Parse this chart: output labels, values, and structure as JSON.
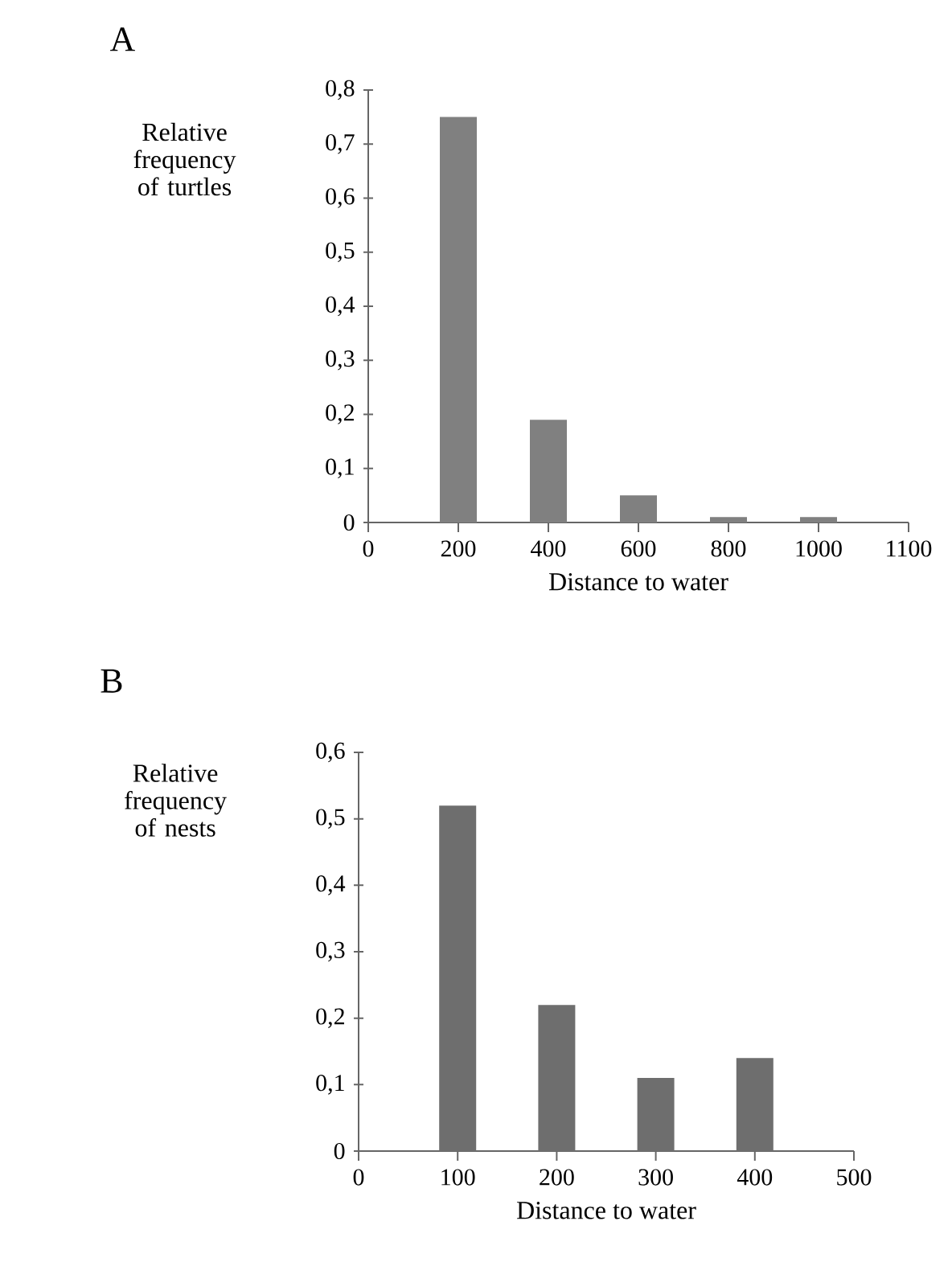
{
  "chart_data": [
    {
      "type": "bar",
      "title": "A",
      "xlabel": "Distance to water",
      "ylabel": "Relative frequency of turtles",
      "categories": [
        "0",
        "200",
        "400",
        "600",
        "800",
        "1000",
        "1100"
      ],
      "values": [
        null,
        0.75,
        0.19,
        0.05,
        0.01,
        0.01,
        null
      ],
      "color": "#808080",
      "ylim": [
        0,
        0.8
      ],
      "yticks": [
        0,
        {
          "value": 0.1,
          "label": "0,1"
        },
        {
          "value": 0.2,
          "label": "0,2"
        },
        {
          "value": 0.3,
          "label": "0,3"
        },
        {
          "value": 0.4,
          "label": "0,4"
        },
        {
          "value": 0.5,
          "label": "0,5"
        },
        {
          "value": 0.6,
          "label": "0,6"
        },
        {
          "value": 0.7,
          "label": "0,7"
        },
        {
          "value": 0.8,
          "label": "0,8"
        }
      ]
    },
    {
      "type": "bar",
      "title": "B",
      "xlabel": "Distance to water",
      "ylabel": "Relative frequency of nests",
      "categories": [
        "0",
        "100",
        "200",
        "300",
        "400",
        "500"
      ],
      "values": [
        null,
        0.52,
        0.22,
        0.11,
        0.14,
        null
      ],
      "color": "#6e6e6e",
      "ylim": [
        0,
        0.6
      ],
      "yticks": [
        0,
        {
          "value": 0.1,
          "label": "0,1"
        },
        {
          "value": 0.2,
          "label": "0,2"
        },
        {
          "value": 0.3,
          "label": "0,3"
        },
        {
          "value": 0.4,
          "label": "0,4"
        },
        {
          "value": 0.5,
          "label": "0,5"
        },
        {
          "value": 0.6,
          "label": "0,6"
        }
      ]
    }
  ]
}
